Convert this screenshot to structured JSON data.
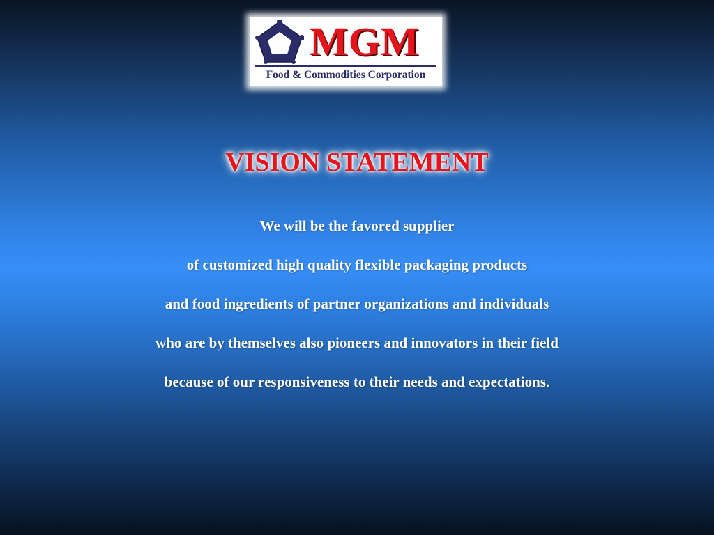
{
  "logo": {
    "wordmark": "MGM",
    "tagline": "Food & Commodities Corporation",
    "mark_icon": "pentagon-ring-icon",
    "wordmark_color": "#e8141c",
    "mark_color": "#2b2d6b"
  },
  "slide": {
    "title": "VISION STATEMENT",
    "title_color": "#e8141c",
    "body_color": "#ffffff",
    "lines": [
      "We will be the favored supplier",
      "of customized high quality flexible packaging products",
      "and food ingredients of partner organizations and individuals",
      "who are by themselves also pioneers and innovators in their field",
      "because of our responsiveness to their needs and expectations."
    ]
  }
}
